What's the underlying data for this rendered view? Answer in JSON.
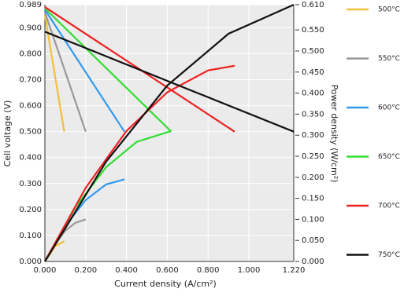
{
  "chart_data": {
    "type": "line",
    "x_label": "Current density (A/cm²)",
    "y_label": "Cell voltage (V)",
    "y2_label": "Power density (W/cm²)",
    "xlim": [
      0,
      1.22
    ],
    "xticks": [
      {
        "value": 0,
        "label": "0.000"
      },
      {
        "value": 0.2,
        "label": "0.200"
      },
      {
        "value": 0.4,
        "label": "0.400"
      },
      {
        "value": 0.6,
        "label": "0.600"
      },
      {
        "value": 0.8,
        "label": "0.800"
      },
      {
        "value": 1.0,
        "label": "1.000"
      },
      {
        "value": 1.22,
        "label": "1.220"
      }
    ],
    "ylim": [
      0,
      0.989
    ],
    "yticks": [
      {
        "value": 0,
        "label": "0.000"
      },
      {
        "value": 0.1,
        "label": "0.100"
      },
      {
        "value": 0.2,
        "label": "0.200"
      },
      {
        "value": 0.3,
        "label": "0.300"
      },
      {
        "value": 0.4,
        "label": "0.400"
      },
      {
        "value": 0.5,
        "label": "0.500"
      },
      {
        "value": 0.6,
        "label": "0.600"
      },
      {
        "value": 0.7,
        "label": "0.700"
      },
      {
        "value": 0.8,
        "label": "0.800"
      },
      {
        "value": 0.9,
        "label": "0.900"
      },
      {
        "value": 0.989,
        "label": "0.989"
      }
    ],
    "y2lim": [
      0,
      0.61
    ],
    "y2ticks": [
      {
        "value": 0,
        "label": "0.000"
      },
      {
        "value": 0.05,
        "label": "0.050"
      },
      {
        "value": 0.1,
        "label": "0.100"
      },
      {
        "value": 0.15,
        "label": "0.150"
      },
      {
        "value": 0.2,
        "label": "0.200"
      },
      {
        "value": 0.25,
        "label": "0.250"
      },
      {
        "value": 0.3,
        "label": "0.300"
      },
      {
        "value": 0.35,
        "label": "0.350"
      },
      {
        "value": 0.4,
        "label": "0.400"
      },
      {
        "value": 0.45,
        "label": "0.450"
      },
      {
        "value": 0.5,
        "label": "0.500"
      },
      {
        "value": 0.55,
        "label": "0.550"
      },
      {
        "value": 0.61,
        "label": "0.610"
      }
    ],
    "grid": true,
    "legend": "right",
    "series": [
      {
        "name": "500°C",
        "color": "#f2bf3a",
        "voltage": {
          "x": [
            0,
            0.095
          ],
          "values": [
            0.95,
            0.5
          ]
        },
        "power": {
          "axis": "y2",
          "x": [
            0,
            0.05,
            0.095
          ],
          "values": [
            0,
            0.036,
            0.048
          ]
        }
      },
      {
        "name": "550°C",
        "color": "#999999",
        "voltage": {
          "x": [
            0,
            0.2
          ],
          "values": [
            0.96,
            0.5
          ]
        },
        "power": {
          "axis": "y2",
          "x": [
            0,
            0.05,
            0.1,
            0.15,
            0.2
          ],
          "values": [
            0,
            0.042,
            0.073,
            0.092,
            0.1
          ]
        }
      },
      {
        "name": "600°C",
        "color": "#3399ee",
        "voltage": {
          "x": [
            0,
            0.39
          ],
          "values": [
            0.97,
            0.5
          ]
        },
        "power": {
          "axis": "y2",
          "x": [
            0,
            0.1,
            0.2,
            0.3,
            0.39
          ],
          "values": [
            0,
            0.085,
            0.146,
            0.183,
            0.195
          ]
        }
      },
      {
        "name": "650°C",
        "color": "#33dd33",
        "voltage": {
          "x": [
            0,
            0.62
          ],
          "values": [
            0.975,
            0.5
          ]
        },
        "power": {
          "axis": "y2",
          "x": [
            0,
            0.15,
            0.3,
            0.45,
            0.62
          ],
          "values": [
            0,
            0.129,
            0.224,
            0.284,
            0.31
          ]
        }
      },
      {
        "name": "700°C",
        "color": "#ee2222",
        "voltage": {
          "x": [
            0,
            0.93
          ],
          "values": [
            0.98,
            0.5
          ]
        },
        "power": {
          "axis": "y2",
          "x": [
            0,
            0.2,
            0.4,
            0.6,
            0.8,
            0.93
          ],
          "values": [
            0,
            0.175,
            0.31,
            0.402,
            0.454,
            0.465
          ]
        }
      },
      {
        "name": "750°C",
        "color": "#111111",
        "voltage": {
          "x": [
            0,
            1.22
          ],
          "values": [
            0.885,
            0.5
          ]
        },
        "power": {
          "axis": "y2",
          "x": [
            0,
            0.3,
            0.6,
            0.9,
            1.22
          ],
          "values": [
            0,
            0.237,
            0.418,
            0.541,
            0.61
          ]
        }
      }
    ]
  }
}
